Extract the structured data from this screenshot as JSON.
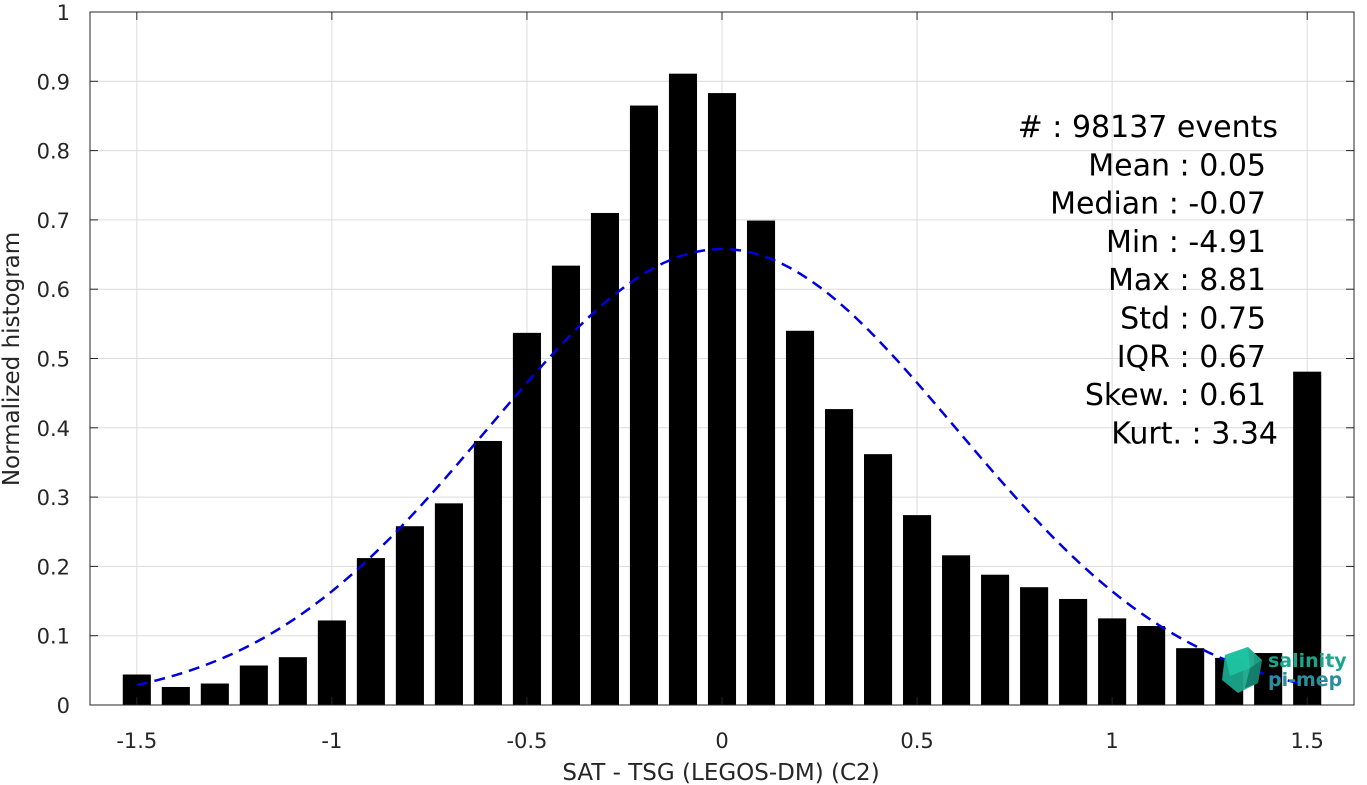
{
  "chart_data": {
    "type": "bar",
    "xlabel": "SAT - TSG (LEGOS-DM) (C2)",
    "ylabel": "Normalized histogram",
    "xlim": [
      -1.62,
      1.62
    ],
    "ylim": [
      0,
      1
    ],
    "grid": true,
    "xticks": [
      -1.5,
      -1,
      -0.5,
      0,
      0.5,
      1,
      1.5
    ],
    "xtick_labels": [
      "-1.5",
      "-1",
      "-0.5",
      "0",
      "0.5",
      "1",
      "1.5"
    ],
    "yticks": [
      0,
      0.1,
      0.2,
      0.3,
      0.4,
      0.5,
      0.6,
      0.7,
      0.8,
      0.9,
      1
    ],
    "ytick_labels": [
      "0",
      "0.1",
      "0.2",
      "0.3",
      "0.4",
      "0.5",
      "0.6",
      "0.7",
      "0.8",
      "0.9",
      "1"
    ],
    "bar_width": 0.072,
    "x": [
      -1.5,
      -1.4,
      -1.3,
      -1.2,
      -1.1,
      -1.0,
      -0.9,
      -0.8,
      -0.7,
      -0.6,
      -0.5,
      -0.4,
      -0.3,
      -0.2,
      -0.1,
      0.0,
      0.1,
      0.2,
      0.3,
      0.4,
      0.5,
      0.6,
      0.7,
      0.8,
      0.9,
      1.0,
      1.1,
      1.2,
      1.3,
      1.4,
      1.5
    ],
    "values": [
      0.044,
      0.026,
      0.031,
      0.057,
      0.069,
      0.122,
      0.212,
      0.258,
      0.291,
      0.381,
      0.537,
      0.634,
      0.71,
      0.865,
      0.911,
      0.883,
      0.699,
      0.54,
      0.427,
      0.362,
      0.274,
      0.216,
      0.188,
      0.17,
      0.153,
      0.125,
      0.114,
      0.082,
      0.068,
      0.075,
      0.481
    ],
    "fit_curve": {
      "style": "dashed",
      "color": "#0000dd",
      "distribution": "normal",
      "mean": 0.0,
      "std": 0.6,
      "peak": 0.658,
      "x_range": [
        -1.5,
        1.5
      ]
    },
    "bar_color": "#000000",
    "annotations": [
      "#  : 98137 events",
      "Mean : 0.05",
      "Median : -0.07",
      "Min : -4.91",
      "Max : 8.81",
      "Std : 0.75",
      "IQR : 0.67",
      "Skew. : 0.61",
      "Kurt. : 3.34"
    ]
  },
  "logo": {
    "line1": "salinity",
    "line2": "pi-mep",
    "color_primary": "#1aa68a",
    "color_secondary": "#2a8f9a"
  }
}
